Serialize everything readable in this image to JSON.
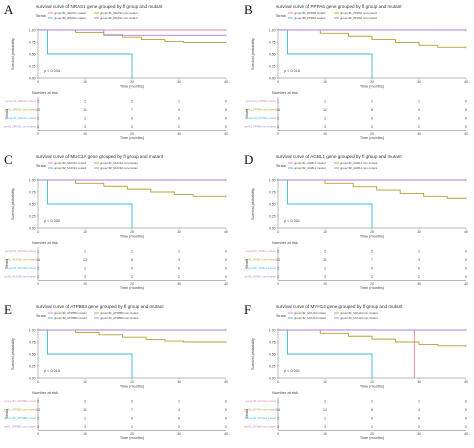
{
  "figure": {
    "colors": {
      "pink": "#e67fb0",
      "olive": "#b8a030",
      "cyan": "#3bb8d8",
      "purple": "#b27fd6",
      "axis": "#777777",
      "text": "#444444"
    },
    "panels": [
      {
        "letter": "A",
        "title": "survival curve of NRAS1 gene grouped by fl group and mutant",
        "legend_title": "Strata",
        "legend": [
          "group=fl1_NRAS1 mutant",
          "group=fl1_NRAS1 non-mutant",
          "group=fl2_NRAS1 mutant",
          "group=fl2_NRAS1 non-mutant"
        ],
        "ylabel": "Survival probability",
        "xlabel": "Time (months)",
        "pvalue": "p = 0.034",
        "risk_title": "Number at risk",
        "risk_ylabel": "Strata",
        "xticks": [
          "0",
          "10",
          "20",
          "30",
          "40"
        ],
        "yticks": [
          "1.00",
          "0.75",
          "0.50",
          "0.25",
          "0.00"
        ],
        "risk_labels": [
          "group=fl1_NRAS1 mutant",
          "group=fl1_NRAS1 non-mutant",
          "group=fl2_NRAS1 mutant",
          "group=fl2_NRAS1 non-mutant"
        ],
        "risk": [
          [
            "2",
            "2",
            "2",
            "1",
            "0"
          ],
          [
            "13",
            "11",
            "7",
            "3",
            "0"
          ],
          [
            "2",
            "1",
            "0",
            "0",
            "0"
          ],
          [
            "3",
            "3",
            "2",
            "2",
            "0"
          ]
        ]
      },
      {
        "letter": "B",
        "title": "survival curve of PPPA6 gene grouped by fl group and mutant",
        "legend_title": "Strata",
        "legend": [
          "group=fl1_PPPA6 mutant",
          "group=fl1_PPPA6 non-mutant",
          "group=fl2_PPPA6 mutant",
          "group=fl2_PPPA6 non-mutant"
        ],
        "ylabel": "Survival probability",
        "xlabel": "Time (months)",
        "pvalue": "p = 0.018",
        "risk_title": "Number at risk",
        "risk_ylabel": "Strata",
        "xticks": [
          "0",
          "10",
          "20",
          "30",
          "40"
        ],
        "yticks": [
          "1.00",
          "0.75",
          "0.50",
          "0.25",
          "0.00"
        ],
        "risk_labels": [
          "group=fl1_PPPA6 mutant",
          "group=fl1_PPPA6 non-mutant",
          "group=fl2_PPPA6 mutant",
          "group=fl2_PPPA6 non-mutant"
        ],
        "risk": [
          [
            "1",
            "1",
            "1",
            "1",
            "0"
          ],
          [
            "14",
            "12",
            "8",
            "3",
            "0"
          ],
          [
            "2",
            "1",
            "0",
            "0",
            "0"
          ],
          [
            "3",
            "3",
            "2",
            "2",
            "0"
          ]
        ]
      },
      {
        "letter": "C",
        "title": "survival curve of MUC3A gene grouped by fl group and mutant",
        "legend_title": "Strata",
        "legend": [
          "group=fl1_MUC3A mutant",
          "group=fl1_MUC3A non-mutant",
          "group=fl2_MUC3A mutant",
          "group=fl2_MUC3A non-mutant"
        ],
        "ylabel": "Survival probability",
        "xlabel": "Time (months)",
        "pvalue": "p = 0.030",
        "risk_title": "Number at risk",
        "risk_ylabel": "Strata",
        "xticks": [
          "0",
          "10",
          "20",
          "30",
          "40"
        ],
        "yticks": [
          "1.00",
          "0.75",
          "0.50",
          "0.25",
          "0.00"
        ],
        "risk_labels": [
          "group=fl1_MUC3A mutant",
          "group=fl1_MUC3A non-mutant",
          "group=fl2_MUC3A mutant",
          "group=fl2_MUC3A non-mutant"
        ],
        "risk": [
          [
            "1",
            "1",
            "1",
            "1",
            "0"
          ],
          [
            "14",
            "12",
            "8",
            "3",
            "0"
          ],
          [
            "2",
            "1",
            "0",
            "0",
            "0"
          ],
          [
            "3",
            "3",
            "2",
            "2",
            "0"
          ]
        ]
      },
      {
        "letter": "D",
        "title": "survival curve of AGBL1 gene grouped by fl group and mutant",
        "legend_title": "Strata",
        "legend": [
          "group=fl1_AGBL1 mutant",
          "group=fl1_AGBL1 non-mutant",
          "group=fl2_AGBL1 mutant",
          "group=fl2_AGBL1 non-mutant"
        ],
        "ylabel": "Survival probability",
        "xlabel": "Time (months)",
        "pvalue": "p = 0.001",
        "risk_title": "Number at risk",
        "risk_ylabel": "Strata",
        "xticks": [
          "0",
          "10",
          "20",
          "30",
          "40"
        ],
        "yticks": [
          "1.00",
          "0.75",
          "0.50",
          "0.25",
          "0.00"
        ],
        "risk_labels": [
          "group=fl1_AGBL1 mutant",
          "group=fl1_AGBL1 non-mutant",
          "group=fl2_AGBL1 mutant",
          "group=fl2_AGBL1 non-mutant"
        ],
        "risk": [
          [
            "2",
            "2",
            "2",
            "1",
            "0"
          ],
          [
            "13",
            "11",
            "7",
            "3",
            "0"
          ],
          [
            "2",
            "1",
            "0",
            "0",
            "0"
          ],
          [
            "3",
            "3",
            "2",
            "2",
            "0"
          ]
        ]
      },
      {
        "letter": "E",
        "title": "survival curve of ATP8B3 gene grouped by fl group and mutant",
        "legend_title": "Strata",
        "legend": [
          "group=fl1_ATP8B3 mutant",
          "group=fl1_ATP8B3 non-mutant",
          "group=fl2_ATP8B3 mutant",
          "group=fl2_ATP8B3 non-mutant"
        ],
        "ylabel": "Survival probability",
        "xlabel": "Time (months)",
        "pvalue": "p = 0.019",
        "risk_title": "Number at risk",
        "risk_ylabel": "Strata",
        "xticks": [
          "0",
          "10",
          "20",
          "30",
          "40"
        ],
        "yticks": [
          "1.00",
          "0.75",
          "0.50",
          "0.25",
          "0.00"
        ],
        "risk_labels": [
          "group=fl1_ATP8B3 mutant",
          "group=fl1_ATP8B3 non-mutant",
          "group=fl2_ATP8B3 mutant",
          "group=fl2_ATP8B3 non-mutant"
        ],
        "risk": [
          [
            "2",
            "2",
            "2",
            "1",
            "0"
          ],
          [
            "13",
            "11",
            "7",
            "3",
            "0"
          ],
          [
            "2",
            "1",
            "0",
            "0",
            "0"
          ],
          [
            "3",
            "3",
            "2",
            "2",
            "0"
          ]
        ]
      },
      {
        "letter": "F",
        "title": "survival curve of MYH14 gene grouped by fl group and mutant",
        "legend_title": "Strata",
        "legend": [
          "group=fl1_MYH14 mutant",
          "group=fl1_MYH14 non-mutant",
          "group=fl2_MYH14 mutant",
          "group=fl2_MYH14 non-mutant"
        ],
        "ylabel": "Survival probability",
        "xlabel": "Time (months)",
        "pvalue": "p = 0.001",
        "risk_title": "Number at risk",
        "risk_ylabel": "Strata",
        "xticks": [
          "0",
          "10",
          "20",
          "30",
          "40"
        ],
        "yticks": [
          "1.00",
          "0.75",
          "0.50",
          "0.25",
          "0.00"
        ],
        "risk_labels": [
          "group=fl1_MYH14 mutant",
          "group=fl1_MYH14 non-mutant",
          "group=fl2_MYH14 mutant",
          "group=fl2_MYH14 non-mutant"
        ],
        "risk": [
          [
            "1",
            "1",
            "1",
            "1",
            "0"
          ],
          [
            "14",
            "12",
            "8",
            "3",
            "0"
          ],
          [
            "2",
            "1",
            "0",
            "0",
            "0"
          ],
          [
            "3",
            "3",
            "2",
            "2",
            "0"
          ]
        ]
      }
    ]
  },
  "chart_data": [
    {
      "type": "line",
      "title": "survival curve of NRAS1 gene grouped by fl group and mutant",
      "xlabel": "Time (months)",
      "ylabel": "Survival probability",
      "xlim": [
        0,
        40
      ],
      "ylim": [
        0,
        1
      ],
      "series": [
        {
          "name": "group=fl1_NRAS1 mutant",
          "x": [
            0,
            40
          ],
          "y": [
            1,
            1
          ]
        },
        {
          "name": "group=fl1_NRAS1 non-mutant",
          "x": [
            0,
            8,
            14,
            18,
            22,
            27,
            31,
            40
          ],
          "y": [
            1,
            0.95,
            0.9,
            0.85,
            0.8,
            0.76,
            0.74,
            0.74
          ]
        },
        {
          "name": "group=fl2_NRAS1 mutant",
          "x": [
            0,
            2,
            20,
            20
          ],
          "y": [
            1,
            0.5,
            0.5,
            0
          ]
        },
        {
          "name": "group=fl2_NRAS1 non-mutant",
          "x": [
            0,
            14,
            40
          ],
          "y": [
            1,
            0.89,
            0.89
          ]
        }
      ]
    },
    {
      "type": "line",
      "title": "survival curve of PPPA6 gene grouped by fl group and mutant",
      "xlabel": "Time (months)",
      "ylabel": "Survival probability",
      "xlim": [
        0,
        40
      ],
      "ylim": [
        0,
        1
      ],
      "series": [
        {
          "name": "group=fl1_PPPA6 mutant",
          "x": [
            0,
            40
          ],
          "y": [
            1,
            1
          ]
        },
        {
          "name": "group=fl1_PPPA6 non-mutant",
          "x": [
            0,
            9,
            15,
            20,
            25,
            30,
            34,
            40
          ],
          "y": [
            1,
            0.93,
            0.87,
            0.8,
            0.74,
            0.68,
            0.64,
            0.64
          ]
        },
        {
          "name": "group=fl2_PPPA6 mutant",
          "x": [
            0,
            2,
            20,
            20
          ],
          "y": [
            1,
            0.5,
            0.5,
            0
          ]
        },
        {
          "name": "group=fl2_PPPA6 non-mutant",
          "x": [
            0,
            40
          ],
          "y": [
            1,
            1
          ]
        }
      ]
    },
    {
      "type": "line",
      "title": "survival curve of MUC3A gene grouped by fl group and mutant",
      "xlabel": "Time (months)",
      "ylabel": "Survival probability",
      "xlim": [
        0,
        40
      ],
      "ylim": [
        0,
        1
      ],
      "series": [
        {
          "name": "group=fl1_MUC3A mutant",
          "x": [
            0,
            40
          ],
          "y": [
            1,
            1
          ]
        },
        {
          "name": "group=fl1_MUC3A non-mutant",
          "x": [
            0,
            8,
            14,
            19,
            24,
            29,
            33,
            40
          ],
          "y": [
            1,
            0.93,
            0.87,
            0.81,
            0.75,
            0.7,
            0.66,
            0.66
          ]
        },
        {
          "name": "group=fl2_MUC3A mutant",
          "x": [
            0,
            2,
            20,
            20
          ],
          "y": [
            1,
            0.5,
            0.5,
            0
          ]
        },
        {
          "name": "group=fl2_MUC3A non-mutant",
          "x": [
            0,
            40
          ],
          "y": [
            1,
            1
          ]
        }
      ]
    },
    {
      "type": "line",
      "title": "survival curve of AGBL1 gene grouped by fl group and mutant",
      "xlabel": "Time (months)",
      "ylabel": "Survival probability",
      "xlim": [
        0,
        40
      ],
      "ylim": [
        0,
        1
      ],
      "series": [
        {
          "name": "group=fl1_AGBL1 mutant",
          "x": [
            0,
            40
          ],
          "y": [
            1,
            1
          ]
        },
        {
          "name": "group=fl1_AGBL1 non-mutant",
          "x": [
            0,
            10,
            16,
            21,
            26,
            31,
            36,
            40
          ],
          "y": [
            1,
            0.93,
            0.86,
            0.79,
            0.72,
            0.66,
            0.62,
            0.62
          ]
        },
        {
          "name": "group=fl2_AGBL1 mutant",
          "x": [
            0,
            2,
            20,
            20
          ],
          "y": [
            1,
            0.5,
            0.5,
            0
          ]
        },
        {
          "name": "group=fl2_AGBL1 non-mutant",
          "x": [
            0,
            40
          ],
          "y": [
            1,
            1
          ]
        }
      ]
    },
    {
      "type": "line",
      "title": "survival curve of ATP8B3 gene grouped by fl group and mutant",
      "xlabel": "Time (months)",
      "ylabel": "Survival probability",
      "xlim": [
        0,
        40
      ],
      "ylim": [
        0,
        1
      ],
      "series": [
        {
          "name": "group=fl1_ATP8B3 mutant",
          "x": [
            0,
            40
          ],
          "y": [
            1,
            1
          ]
        },
        {
          "name": "group=fl1_ATP8B3 non-mutant",
          "x": [
            0,
            8,
            13,
            18,
            23,
            27,
            31,
            40
          ],
          "y": [
            1,
            0.95,
            0.9,
            0.85,
            0.8,
            0.77,
            0.75,
            0.75
          ]
        },
        {
          "name": "group=fl2_ATP8B3 mutant",
          "x": [
            0,
            2,
            20,
            20
          ],
          "y": [
            1,
            0.5,
            0.5,
            0
          ]
        },
        {
          "name": "group=fl2_ATP8B3 non-mutant",
          "x": [
            0,
            40
          ],
          "y": [
            1,
            1
          ]
        }
      ]
    },
    {
      "type": "line",
      "title": "survival curve of MYH14 gene grouped by fl group and mutant",
      "xlabel": "Time (months)",
      "ylabel": "Survival probability",
      "xlim": [
        0,
        40
      ],
      "ylim": [
        0,
        1
      ],
      "series": [
        {
          "name": "group=fl1_MYH14 mutant",
          "x": [
            0,
            29,
            29
          ],
          "y": [
            1,
            1,
            0
          ]
        },
        {
          "name": "group=fl1_MYH14 non-mutant",
          "x": [
            0,
            9,
            15,
            20,
            25,
            30,
            34,
            40
          ],
          "y": [
            1,
            0.93,
            0.87,
            0.81,
            0.75,
            0.7,
            0.67,
            0.67
          ]
        },
        {
          "name": "group=fl2_MYH14 mutant",
          "x": [
            0,
            2,
            20,
            20
          ],
          "y": [
            1,
            0.5,
            0.5,
            0
          ]
        },
        {
          "name": "group=fl2_MYH14 non-mutant",
          "x": [
            0,
            40
          ],
          "y": [
            1,
            1
          ]
        }
      ]
    }
  ]
}
